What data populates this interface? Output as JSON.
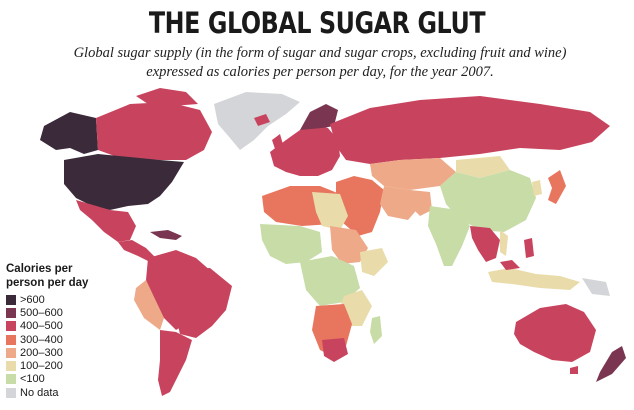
{
  "title": "THE GLOBAL SUGAR GLUT",
  "subtitle": "Global sugar supply (in the form of sugar and sugar crops, excluding fruit and wine) expressed as calories per person per day, for the year 2007.",
  "legend": {
    "title": "Calories per person per day",
    "items": [
      {
        "label": ">600",
        "color": "#3b2a3a"
      },
      {
        "label": "500–600",
        "color": "#7a3550"
      },
      {
        "label": "400–500",
        "color": "#c8445e"
      },
      {
        "label": "300–400",
        "color": "#e8765e"
      },
      {
        "label": "200–300",
        "color": "#eeaa88"
      },
      {
        "label": "100–200",
        "color": "#e9dcaa"
      },
      {
        "label": "<100",
        "color": "#c7dca6"
      },
      {
        "label": "No data",
        "color": "#d3d5d8"
      }
    ]
  }
}
